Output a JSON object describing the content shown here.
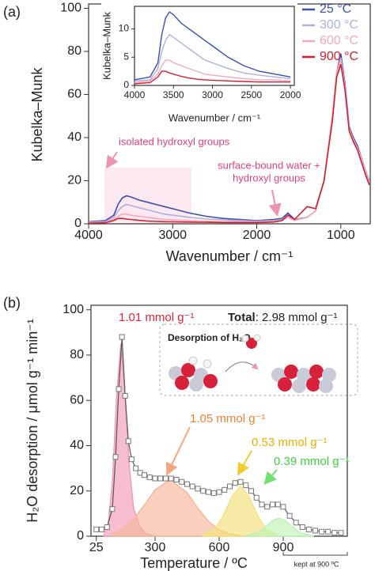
{
  "chart_data": [
    {
      "type": "line",
      "panel_label": "(a)",
      "xlabel": "Wavenumber / cm⁻¹",
      "ylabel": "Kubelka–Munk",
      "xlim": [
        4000,
        650
      ],
      "ylim": [
        0,
        102
      ],
      "xticks": [
        4000,
        3000,
        2000,
        1000
      ],
      "yticks": [
        0,
        20,
        40,
        60,
        80,
        100
      ],
      "x": [
        4000,
        3800,
        3700,
        3650,
        3600,
        3550,
        3500,
        3400,
        3300,
        3200,
        3100,
        3000,
        2800,
        2600,
        2400,
        2200,
        2000,
        1800,
        1700,
        1630,
        1550,
        1400,
        1300,
        1200,
        1100,
        1050,
        1000,
        950,
        900,
        850,
        800,
        750,
        700,
        660
      ],
      "series": [
        {
          "name": "25 °C",
          "color": "#3a4fb0",
          "values": [
            1,
            1.5,
            4,
            9,
            12,
            13,
            12.5,
            11,
            10,
            9,
            8,
            7,
            5,
            3.5,
            2.5,
            2,
            1.5,
            2,
            2.5,
            5,
            2,
            3,
            6,
            20,
            50,
            70,
            79,
            65,
            45,
            40,
            36,
            30,
            24,
            20
          ]
        },
        {
          "name": "300 °C",
          "color": "#aeb0de",
          "values": [
            0.8,
            1,
            3,
            6,
            8,
            9,
            8.5,
            7.5,
            6.5,
            5.5,
            4.5,
            4,
            3,
            2.2,
            1.8,
            1.5,
            1.2,
            1.5,
            2,
            4,
            1.8,
            3,
            6,
            20,
            50,
            70,
            77,
            64,
            44,
            39,
            35,
            30,
            24,
            20
          ]
        },
        {
          "name": "600 °C",
          "color": "#f2a8bc",
          "values": [
            0.5,
            0.8,
            2,
            3.5,
            4.5,
            4.5,
            4,
            3.5,
            3,
            2.5,
            2,
            1.8,
            1.5,
            1.2,
            1,
            1,
            0.8,
            1,
            1.5,
            3,
            1.5,
            3,
            6,
            20,
            50,
            70,
            76,
            63,
            44,
            39,
            35,
            29,
            23,
            19
          ]
        },
        {
          "name": "900 °C",
          "color": "#d42030",
          "values": [
            0.3,
            0.5,
            1.5,
            2.5,
            2.5,
            2.2,
            2,
            1.6,
            1.3,
            1.1,
            1,
            0.9,
            0.8,
            0.7,
            0.6,
            0.6,
            0.6,
            0.8,
            1.5,
            4,
            2,
            8,
            7,
            20,
            48,
            68,
            74,
            62,
            43,
            38,
            34,
            28,
            22,
            18
          ]
        }
      ],
      "annotations": [
        "isolated hydroxyl groups",
        "surface-bound water +",
        "hydroxyl groups"
      ],
      "inset": {
        "xlabel": "Wavenumber / cm⁻¹",
        "ylabel": "Kubelka–Munk",
        "xlim": [
          4000,
          1950
        ],
        "ylim": [
          0,
          14
        ],
        "xticks": [
          4000,
          3500,
          3000,
          2500,
          2000
        ],
        "yticks": [
          0,
          5,
          10
        ]
      }
    },
    {
      "type": "area",
      "panel_label": "(b)",
      "xlabel": "Temperature / ºC",
      "ylabel": "H₂O desorption / μmol g⁻¹ min⁻¹",
      "xlim": [
        0,
        1200
      ],
      "ylim": [
        0,
        102
      ],
      "xticks": [
        25,
        300,
        600,
        900
      ],
      "yticks": [
        0,
        20,
        40,
        60,
        80,
        100
      ],
      "measured": {
        "x": [
          25,
          50,
          75,
          100,
          115,
          130,
          145,
          160,
          175,
          190,
          210,
          230,
          250,
          275,
          300,
          325,
          350,
          375,
          400,
          425,
          450,
          475,
          500,
          525,
          550,
          575,
          600,
          625,
          650,
          675,
          700,
          725,
          750,
          775,
          800,
          825,
          850,
          875,
          900,
          930,
          960,
          990,
          1020,
          1050,
          1080,
          1110,
          1140,
          1170
        ],
        "values": [
          3,
          3,
          4,
          12,
          35,
          65,
          88,
          62,
          42,
          34,
          30,
          28,
          27,
          26,
          25.5,
          25.5,
          25.5,
          25.5,
          25,
          24,
          23,
          22,
          21,
          20,
          19.5,
          19,
          19.5,
          20.5,
          22,
          23.5,
          24,
          22.5,
          20,
          17,
          14,
          13,
          14,
          14,
          13,
          9,
          6,
          4,
          3,
          2.5,
          2,
          2,
          1.5,
          1.5
        ]
      },
      "series": [
        {
          "label": "1.01 mmol g⁻¹",
          "color": "#f29bb8",
          "text_color": "#e0203a",
          "x": [
            60,
            80,
            100,
            120,
            140,
            160,
            180,
            200,
            230,
            260,
            300
          ],
          "values": [
            0.5,
            4.8,
            23.6,
            61.7,
            85,
            61.7,
            30,
            12,
            4,
            1,
            0
          ]
        },
        {
          "label": "1.05 mmol g⁻¹",
          "color": "#f6b79a",
          "text_color": "#f08030",
          "x": [
            100,
            150,
            200,
            250,
            300,
            370,
            450,
            500,
            550,
            600,
            650,
            700
          ],
          "values": [
            1.2,
            3.4,
            7.6,
            13.8,
            20.4,
            25,
            19.2,
            12.4,
            6.5,
            2.8,
            1,
            0.3
          ]
        },
        {
          "label": "0.53 mmol g⁻¹",
          "color": "#f5e17c",
          "text_color": "#e8b000",
          "x": [
            520,
            580,
            620,
            660,
            700,
            740,
            780,
            820,
            880
          ],
          "values": [
            0.2,
            3,
            9,
            17.6,
            22,
            17.6,
            9,
            3,
            0.2
          ]
        },
        {
          "label": "0.39 mmol g⁻¹",
          "color": "#bff3b4",
          "text_color": "#40d040",
          "x": [
            720,
            780,
            820,
            850,
            880,
            910,
            940,
            980,
            1040
          ],
          "values": [
            0.1,
            1.5,
            4.4,
            6.9,
            8,
            6.9,
            4.4,
            1.5,
            0.1
          ]
        }
      ],
      "total": {
        "label": "Total",
        "text": ": 2.98 mmol g⁻¹"
      },
      "inset_title": "Desorption of H₂O",
      "note": "kept at 900 ºC"
    }
  ]
}
